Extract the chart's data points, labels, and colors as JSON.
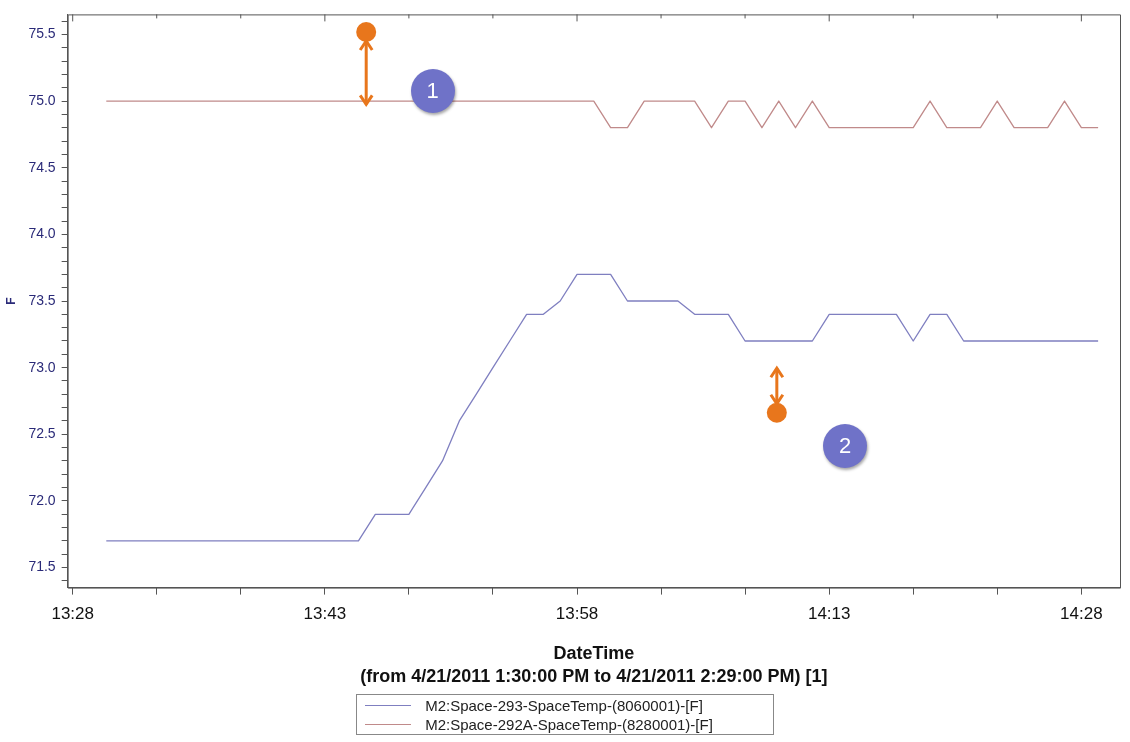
{
  "chart_data": {
    "type": "line",
    "xlabel": "DateTime\n(from 4/21/2011 1:30:00 PM to 4/21/2011 2:29:00 PM) [1]",
    "ylabel": "F",
    "series": [
      {
        "name": "M2:Space-293-SpaceTemp-(8060001)-[F]",
        "color": "#7f7fc0",
        "x": [
          13.5,
          13.75,
          13.7667,
          13.8,
          13.8167,
          13.8333,
          13.85,
          13.8667,
          13.8833,
          13.9,
          13.9167,
          13.9333,
          13.95,
          13.9667,
          14.0,
          14.0167,
          14.0667,
          14.0833,
          14.1167,
          14.1333,
          14.2,
          14.2167,
          14.2833,
          14.3,
          14.3167,
          14.3333,
          14.35,
          14.4833
        ],
        "values": [
          71.7,
          71.7,
          71.9,
          71.9,
          72.1,
          72.3,
          72.6,
          72.8,
          73.0,
          73.2,
          73.4,
          73.4,
          73.5,
          73.7,
          73.7,
          73.5,
          73.5,
          73.4,
          73.4,
          73.2,
          73.2,
          73.4,
          73.4,
          73.2,
          73.4,
          73.4,
          73.2,
          73.2
        ]
      },
      {
        "name": "M2:Space-292A-SpaceTemp-(8280001)-[F]",
        "color": "#c08a8a",
        "x": [
          13.5,
          13.9833,
          14.0,
          14.0167,
          14.0333,
          14.0833,
          14.1,
          14.1167,
          14.1333,
          14.15,
          14.1667,
          14.1833,
          14.2,
          14.2167,
          14.3,
          14.3167,
          14.3333,
          14.3667,
          14.3833,
          14.4,
          14.4333,
          14.45,
          14.4667,
          14.4833
        ],
        "values": [
          75.0,
          75.0,
          74.8,
          74.8,
          75.0,
          75.0,
          74.8,
          75.0,
          75.0,
          74.8,
          75.0,
          74.8,
          75.0,
          74.8,
          74.8,
          75.0,
          74.8,
          74.8,
          75.0,
          74.8,
          74.8,
          75.0,
          74.8,
          74.8
        ]
      }
    ],
    "xlim": [
      13.4617,
      14.505
    ],
    "xticks": [
      {
        "value": 13.4667,
        "label": "13:28"
      },
      {
        "value": 13.55,
        "label": null
      },
      {
        "value": 13.6333,
        "label": null
      },
      {
        "value": 13.7167,
        "label": "13:43"
      },
      {
        "value": 13.8,
        "label": null
      },
      {
        "value": 13.8833,
        "label": null
      },
      {
        "value": 13.9667,
        "label": "13:58"
      },
      {
        "value": 14.05,
        "label": null
      },
      {
        "value": 14.1333,
        "label": null
      },
      {
        "value": 14.2167,
        "label": "14:13"
      },
      {
        "value": 14.3,
        "label": null
      },
      {
        "value": 14.3833,
        "label": null
      },
      {
        "value": 14.4667,
        "label": "14:28"
      }
    ],
    "ylim": [
      71.35,
      75.65
    ],
    "yticks": [
      {
        "value": 71.4,
        "label": null
      },
      {
        "value": 71.5,
        "label": "71.5"
      },
      {
        "value": 71.6,
        "label": null
      },
      {
        "value": 71.7,
        "label": null
      },
      {
        "value": 71.8,
        "label": null
      },
      {
        "value": 71.9,
        "label": null
      },
      {
        "value": 72.0,
        "label": "72.0"
      },
      {
        "value": 72.1,
        "label": null
      },
      {
        "value": 72.2,
        "label": null
      },
      {
        "value": 72.3,
        "label": null
      },
      {
        "value": 72.4,
        "label": null
      },
      {
        "value": 72.5,
        "label": "72.5"
      },
      {
        "value": 72.6,
        "label": null
      },
      {
        "value": 72.7,
        "label": null
      },
      {
        "value": 72.8,
        "label": null
      },
      {
        "value": 72.9,
        "label": null
      },
      {
        "value": 73.0,
        "label": "73.0"
      },
      {
        "value": 73.1,
        "label": null
      },
      {
        "value": 73.2,
        "label": null
      },
      {
        "value": 73.3,
        "label": null
      },
      {
        "value": 73.4,
        "label": null
      },
      {
        "value": 73.5,
        "label": "73.5"
      },
      {
        "value": 73.6,
        "label": null
      },
      {
        "value": 73.7,
        "label": null
      },
      {
        "value": 73.8,
        "label": null
      },
      {
        "value": 73.9,
        "label": null
      },
      {
        "value": 74.0,
        "label": "74.0"
      },
      {
        "value": 74.1,
        "label": null
      },
      {
        "value": 74.2,
        "label": null
      },
      {
        "value": 74.3,
        "label": null
      },
      {
        "value": 74.4,
        "label": null
      },
      {
        "value": 74.5,
        "label": "74.5"
      },
      {
        "value": 74.6,
        "label": null
      },
      {
        "value": 74.7,
        "label": null
      },
      {
        "value": 74.8,
        "label": null
      },
      {
        "value": 74.9,
        "label": null
      },
      {
        "value": 75.0,
        "label": "75.0"
      },
      {
        "value": 75.1,
        "label": null
      },
      {
        "value": 75.2,
        "label": null
      },
      {
        "value": 75.3,
        "label": null
      },
      {
        "value": 75.4,
        "label": null
      },
      {
        "value": 75.5,
        "label": "75.5"
      },
      {
        "value": 75.6,
        "label": null
      }
    ],
    "annotations": [
      "1",
      "2"
    ],
    "grid": false,
    "legend": "bottom",
    "marker": "none",
    "line_style": "solid"
  }
}
